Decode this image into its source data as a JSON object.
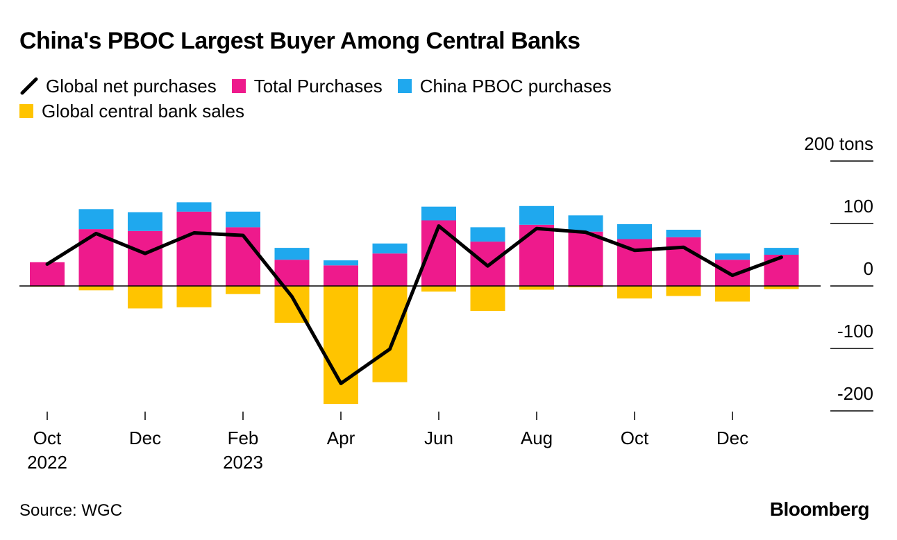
{
  "title": "China's PBOC Largest Buyer Among Central Banks",
  "legend": [
    {
      "label": "Global net purchases",
      "kind": "line",
      "color": "#000000"
    },
    {
      "label": "Total Purchases",
      "kind": "swatch",
      "color": "#ee1a8c"
    },
    {
      "label": "China PBOC purchases",
      "kind": "swatch",
      "color": "#1fa8ee"
    },
    {
      "label": "Global central bank sales",
      "kind": "swatch",
      "color": "#ffc400"
    }
  ],
  "source": "Source: WGC",
  "brand": "Bloomberg",
  "chart_data": {
    "type": "bar",
    "title": "China's PBOC Largest Buyer Among Central Banks",
    "y_unit": "tons",
    "ylim": [
      -200,
      200
    ],
    "y_ticks": [
      {
        "value": 200,
        "label": "200 tons"
      },
      {
        "value": 100,
        "label": "100"
      },
      {
        "value": 0,
        "label": "0"
      },
      {
        "value": -100,
        "label": "-100"
      },
      {
        "value": -200,
        "label": "-200"
      }
    ],
    "categories": [
      "Oct 2022",
      "Nov 2022",
      "Dec 2022",
      "Jan 2023",
      "Feb 2023",
      "Mar 2023",
      "Apr 2023",
      "May 2023",
      "Jun 2023",
      "Jul 2023",
      "Aug 2023",
      "Sep 2023",
      "Oct 2023",
      "Nov 2023",
      "Dec 2023",
      "Jan 2024"
    ],
    "x_tick_labels": [
      {
        "index": 0,
        "line1": "Oct",
        "line2": "2022"
      },
      {
        "index": 2,
        "line1": "Dec",
        "line2": ""
      },
      {
        "index": 4,
        "line1": "Feb",
        "line2": "2023"
      },
      {
        "index": 6,
        "line1": "Apr",
        "line2": ""
      },
      {
        "index": 8,
        "line1": "Jun",
        "line2": ""
      },
      {
        "index": 10,
        "line1": "Aug",
        "line2": ""
      },
      {
        "index": 12,
        "line1": "Oct",
        "line2": ""
      },
      {
        "index": 14,
        "line1": "Dec",
        "line2": ""
      }
    ],
    "series": [
      {
        "name": "Total Purchases",
        "type": "bar",
        "color": "#ee1a8c",
        "values": [
          38,
          91,
          88,
          119,
          94,
          42,
          33,
          52,
          105,
          71,
          98,
          87,
          75,
          78,
          42,
          50
        ]
      },
      {
        "name": "China PBOC purchases",
        "type": "bar",
        "color": "#1fa8ee",
        "values": [
          0,
          32,
          30,
          15,
          25,
          19,
          8,
          16,
          22,
          23,
          30,
          26,
          24,
          12,
          10,
          11
        ]
      },
      {
        "name": "Global central bank sales",
        "type": "bar",
        "color": "#ffc400",
        "values": [
          -1,
          -7,
          -36,
          -34,
          -13,
          -59,
          -189,
          -154,
          -9,
          -40,
          -6,
          -2,
          -20,
          -16,
          -25,
          -5
        ]
      },
      {
        "name": "Global net purchases",
        "type": "line",
        "color": "#000000",
        "values": [
          35,
          84,
          52,
          85,
          81,
          -17,
          -156,
          -101,
          96,
          32,
          92,
          86,
          57,
          62,
          17,
          46
        ]
      }
    ]
  }
}
